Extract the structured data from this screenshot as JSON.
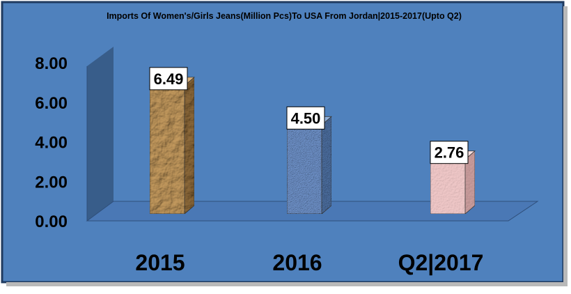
{
  "chart_data": {
    "type": "bar",
    "title": "Imports Of Women's/Girls Jeans(Million Pcs)To USA From Jordan|2015-2017(Upto Q2)",
    "categories": [
      "2015",
      "2016",
      "Q2|2017"
    ],
    "values": [
      6.49,
      4.5,
      2.76
    ],
    "data_labels": [
      "6.49",
      "4.50",
      "2.76"
    ],
    "y_ticks": [
      "0.00",
      "2.00",
      "4.00",
      "6.00",
      "8.00"
    ],
    "ylim": [
      0,
      8
    ],
    "xlabel": "",
    "ylabel": "",
    "grid": false,
    "legend": "none",
    "colors": {
      "background": "#4f81bd",
      "wall": "#385d8a",
      "floor": "#4a78b5",
      "bar_fills": [
        "#c49a5e",
        "#6e91c8",
        "#f0c8c8"
      ],
      "bar_sides": [
        "#8e6a3a",
        "#4c6e9f",
        "#c99c9c"
      ],
      "bar_tops": [
        "#d9b07a",
        "#8fb0dc",
        "#f7dede"
      ]
    }
  }
}
